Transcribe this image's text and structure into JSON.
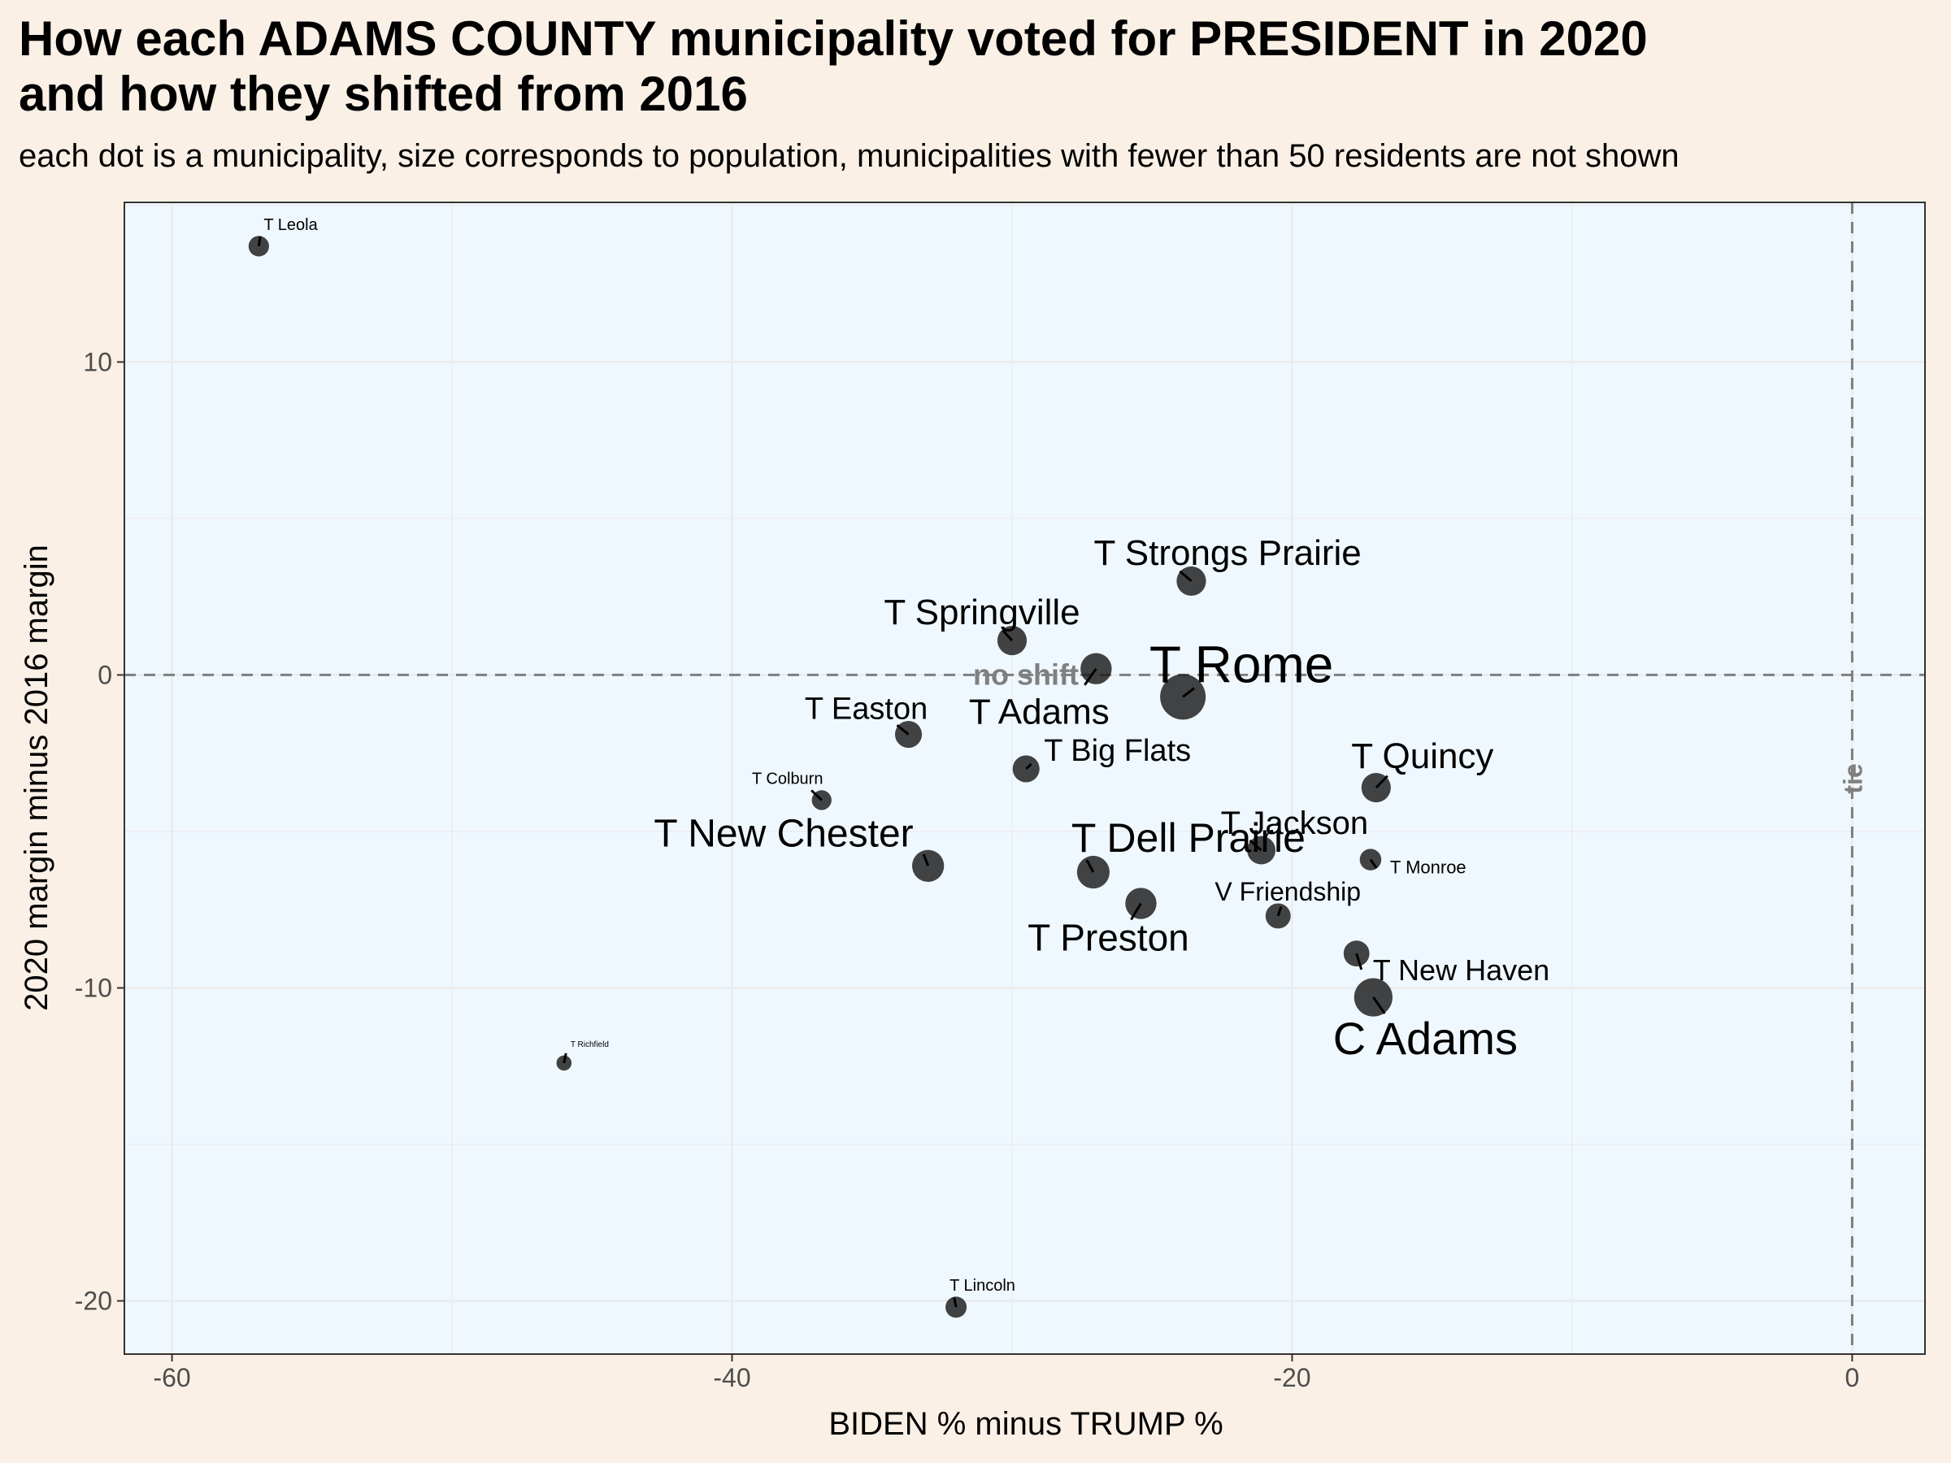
{
  "title_line1": "How each ADAMS COUNTY municipality voted for PRESIDENT in 2020",
  "title_line2": "and how they shifted from 2016",
  "subtitle": "each dot is a municipality, size corresponds to population, municipalities with fewer than 50 residents are not shown",
  "chart_data": {
    "type": "scatter",
    "xlabel": "BIDEN % minus TRUMP %",
    "ylabel": "2020 margin minus 2016 margin",
    "xlim": [
      -61.7,
      2.6
    ],
    "ylim": [
      -21.7,
      15.1
    ],
    "x_ticks": [
      -60,
      -40,
      -20,
      0
    ],
    "y_ticks": [
      -20,
      -10,
      0,
      10
    ],
    "x_tick_labels": [
      "-60",
      "-40",
      "-20",
      "0"
    ],
    "y_tick_labels": [
      "-20",
      "-10",
      "0",
      "10"
    ],
    "grid": true,
    "panel_background": "#f0f8ff",
    "point_color": "#1a1a1a",
    "reference_lines": [
      {
        "axis": "x",
        "value": 0,
        "label": "tie"
      },
      {
        "axis": "y",
        "value": 0,
        "label": "no shift"
      }
    ],
    "points": [
      {
        "label": "T Leola",
        "x": -56.9,
        "y": 13.7,
        "size": 0.3
      },
      {
        "label": "T Strongs Prairie",
        "x": -23.6,
        "y": 3.0,
        "size": 0.55
      },
      {
        "label": "T Springville",
        "x": -30.0,
        "y": 1.1,
        "size": 0.55
      },
      {
        "label": "T Adams",
        "x": -27.0,
        "y": 0.2,
        "size": 0.6
      },
      {
        "label": "T Rome",
        "x": -23.9,
        "y": -0.7,
        "size": 1.0
      },
      {
        "label": "T Easton",
        "x": -33.7,
        "y": -1.9,
        "size": 0.48
      },
      {
        "label": "T Big Flats",
        "x": -29.5,
        "y": -3.0,
        "size": 0.48
      },
      {
        "label": "T Colburn",
        "x": -36.8,
        "y": -4.0,
        "size": 0.28
      },
      {
        "label": "T Quincy",
        "x": -17.0,
        "y": -3.6,
        "size": 0.55
      },
      {
        "label": "T New Chester",
        "x": -33.0,
        "y": -6.1,
        "size": 0.62
      },
      {
        "label": "T Dell Prairie",
        "x": -27.1,
        "y": -6.3,
        "size": 0.64
      },
      {
        "label": "T Jackson",
        "x": -21.1,
        "y": -5.6,
        "size": 0.52
      },
      {
        "label": "T Monroe",
        "x": -17.2,
        "y": -5.9,
        "size": 0.33
      },
      {
        "label": "T Preston",
        "x": -25.4,
        "y": -7.3,
        "size": 0.6
      },
      {
        "label": "V Friendship",
        "x": -20.5,
        "y": -7.7,
        "size": 0.43
      },
      {
        "label": "T New Haven",
        "x": -17.7,
        "y": -8.9,
        "size": 0.45
      },
      {
        "label": "C Adams",
        "x": -17.1,
        "y": -10.3,
        "size": 0.8
      },
      {
        "label": "T Richfield",
        "x": -46.0,
        "y": -12.4,
        "size": 0.15
      },
      {
        "label": "T Lincoln",
        "x": -32.0,
        "y": -20.2,
        "size": 0.32
      }
    ]
  }
}
